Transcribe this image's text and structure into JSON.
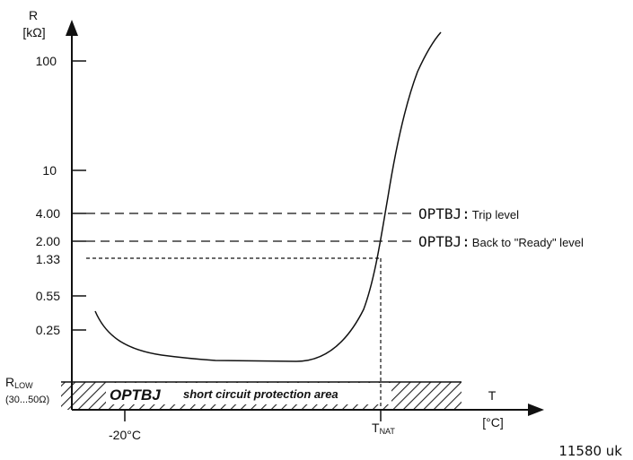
{
  "chart_data": {
    "type": "line",
    "y_axis": {
      "label_line1": "R",
      "label_line2": "[kΩ]",
      "scale": "log",
      "ticks": [
        "100",
        "10",
        "4.00",
        "2.00",
        "1.33",
        "0.55",
        "0.25"
      ]
    },
    "x_axis": {
      "label_line1": "T",
      "label_line2": "[°C]",
      "ticks": [
        "-20°C"
      ],
      "tnat_main": "T",
      "tnat_sub": "NAT"
    },
    "rlow": {
      "main": "R",
      "sub": "LOW",
      "range": "(30...50Ω)"
    },
    "levels": [
      {
        "value": "4.00",
        "prefix": "OPTBJ:",
        "text": "Trip level"
      },
      {
        "value": "2.00",
        "prefix": "OPTBJ:",
        "text": "Back to \"Ready\" level"
      },
      {
        "value": "1.33",
        "prefix": "",
        "text": ""
      }
    ],
    "hatched_area": {
      "prefix": "OPTBJ",
      "text": "short circuit protection area"
    },
    "curve_note": "Thermistor resistance curve: low plateau (~0.1 kΩ) from about -20°C up to near TNAT, then steep rise through 1.33, 2.00, 4.00 kΩ to above 100 kΩ"
  },
  "footer": {
    "code": "11580 uk"
  }
}
